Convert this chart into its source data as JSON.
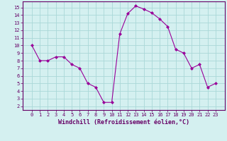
{
  "x": [
    0,
    1,
    2,
    3,
    4,
    5,
    6,
    7,
    8,
    9,
    10,
    11,
    12,
    13,
    14,
    15,
    16,
    17,
    18,
    19,
    20,
    21,
    22,
    23
  ],
  "y": [
    10,
    8,
    8,
    8.5,
    8.5,
    7.5,
    7,
    5,
    4.5,
    2.5,
    2.5,
    11.5,
    14.2,
    15.2,
    14.8,
    14.3,
    13.5,
    12.5,
    9.5,
    9,
    7,
    7.5,
    4.5,
    5
  ],
  "line_color": "#990099",
  "marker": "D",
  "marker_size": 2,
  "bg_color": "#d4f0f0",
  "grid_color": "#aad8d8",
  "xlabel": "Windchill (Refroidissement éolien,°C)",
  "ylim": [
    1.5,
    15.8
  ],
  "yticks": [
    2,
    3,
    4,
    5,
    6,
    7,
    8,
    9,
    10,
    11,
    12,
    13,
    14,
    15
  ],
  "xticks": [
    0,
    1,
    2,
    3,
    4,
    5,
    6,
    7,
    8,
    9,
    10,
    11,
    12,
    13,
    14,
    15,
    16,
    17,
    18,
    19,
    20,
    21,
    22,
    23
  ],
  "tick_color": "#660066",
  "label_color": "#660066",
  "spine_color": "#660066",
  "xlabel_fontsize": 6,
  "tick_fontsize": 5
}
